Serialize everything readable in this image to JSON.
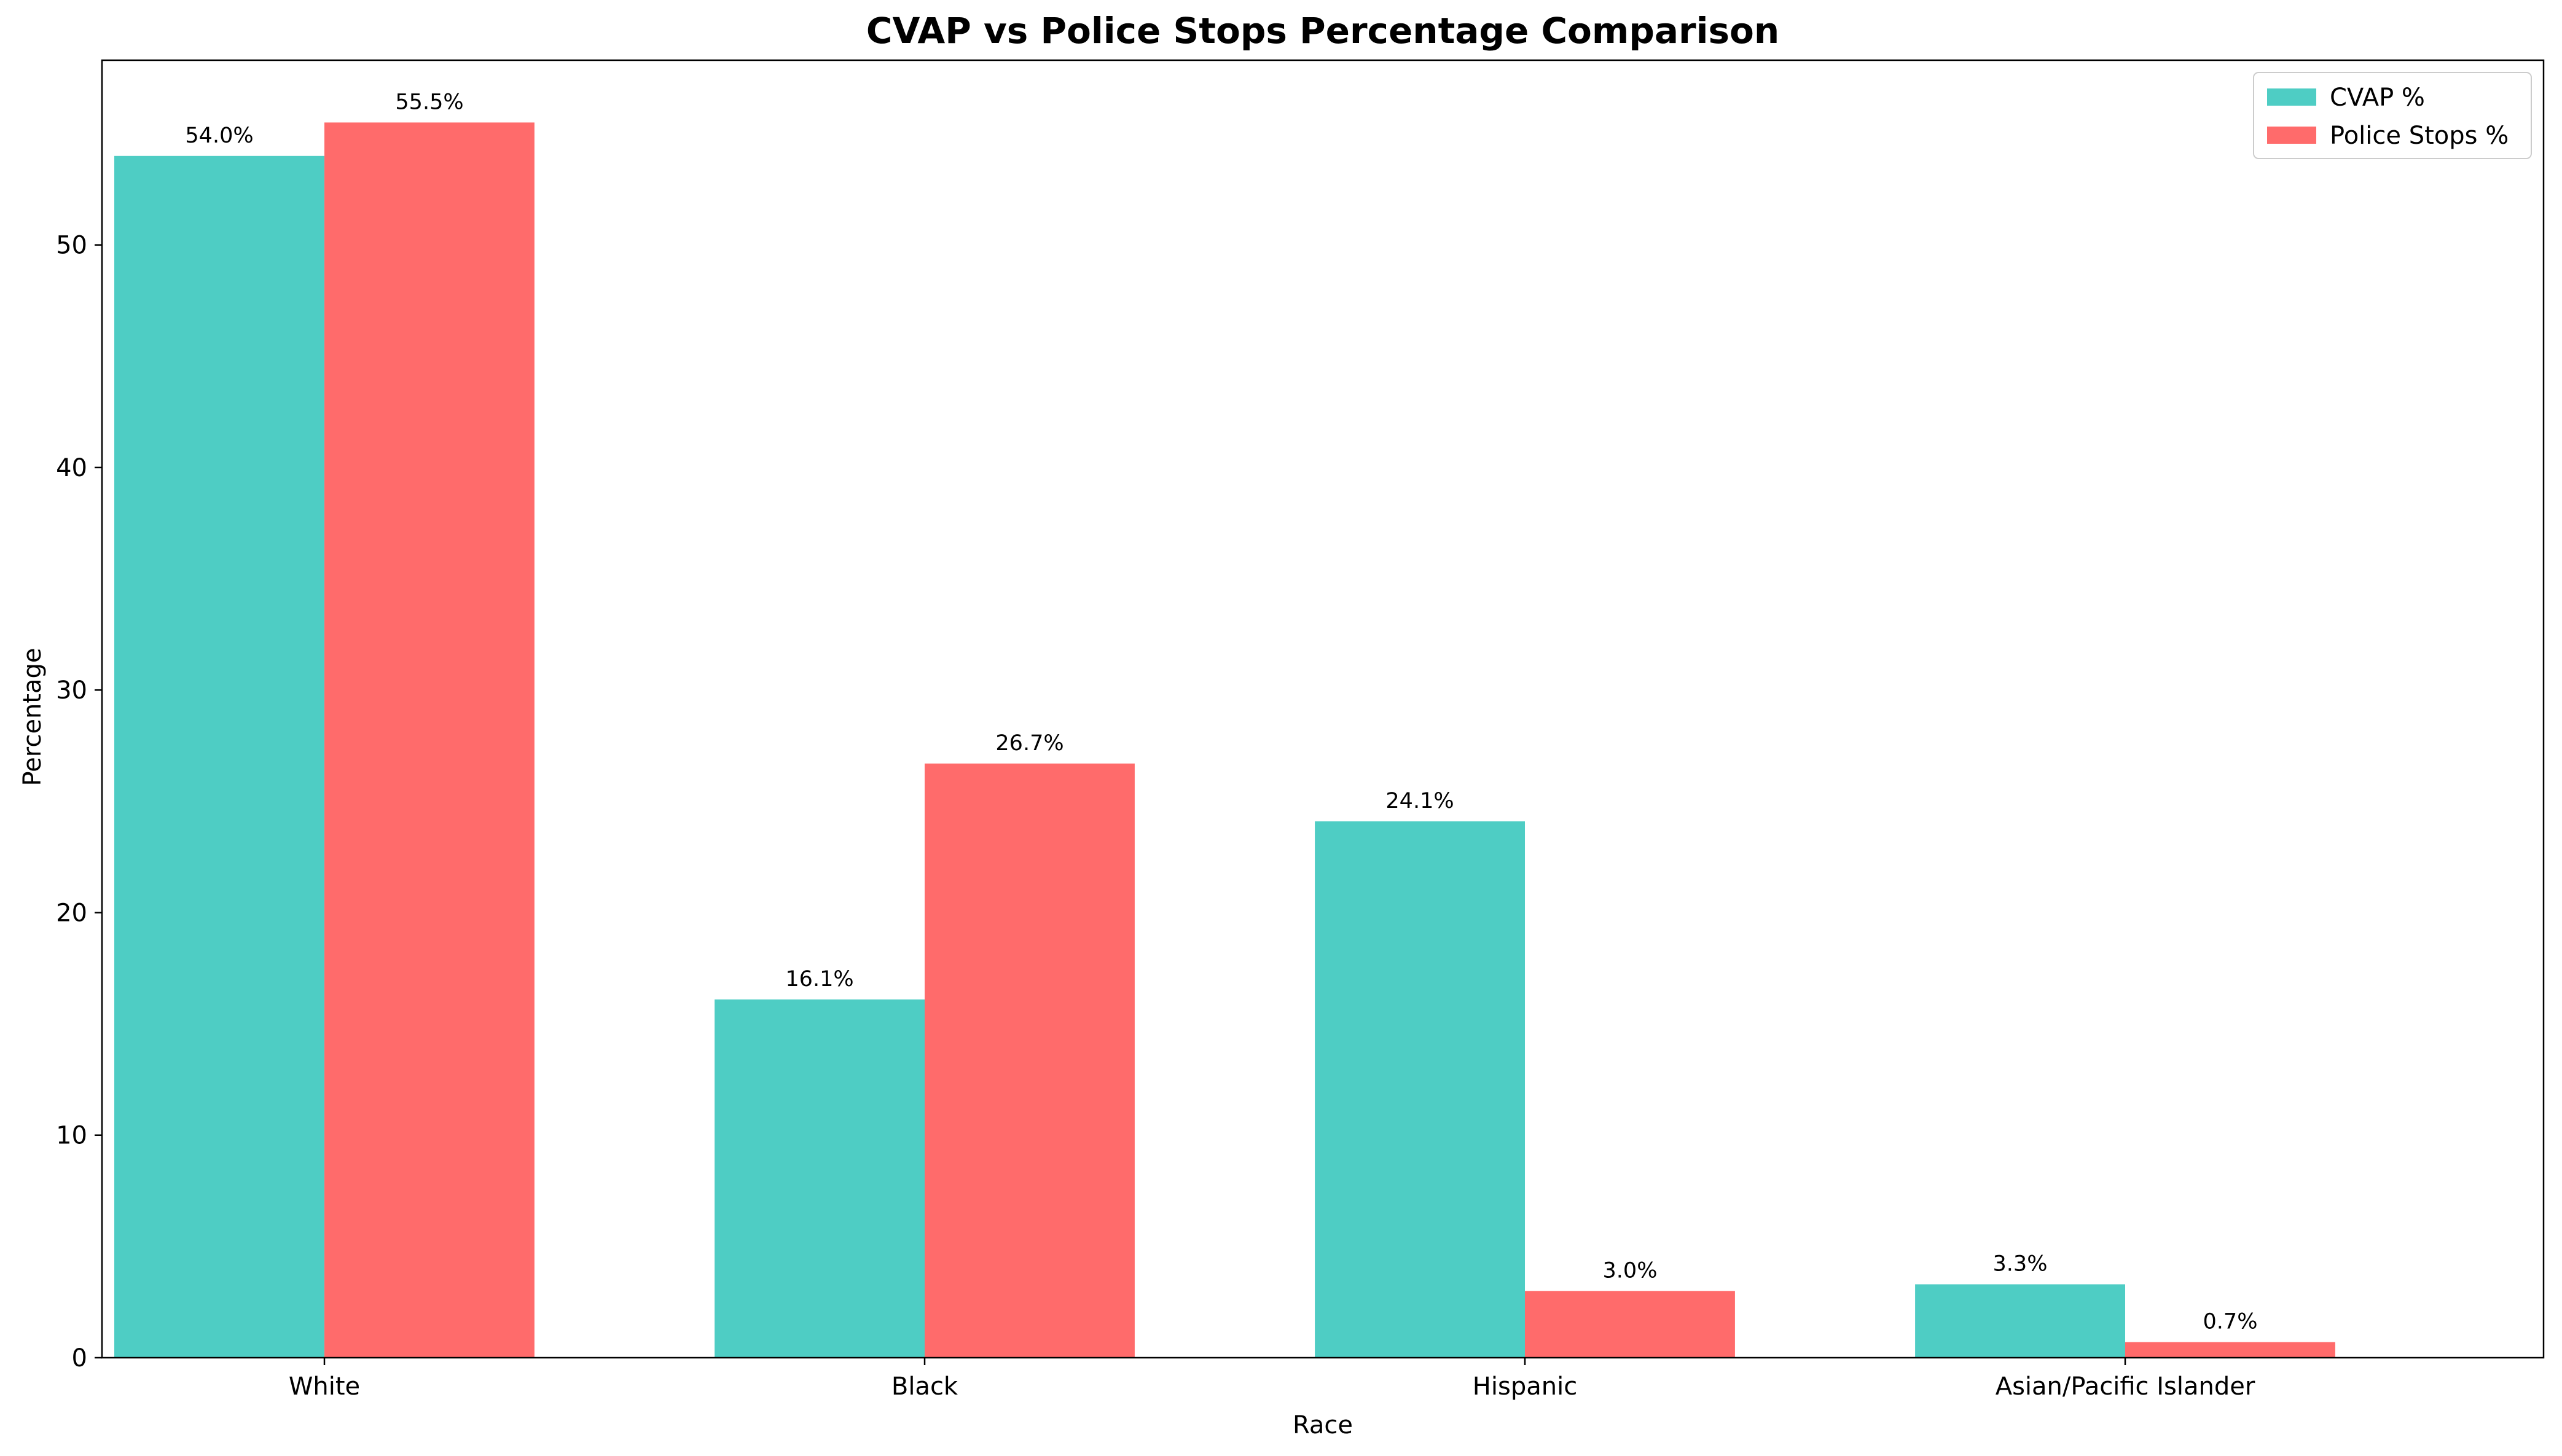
{
  "chart_data": {
    "type": "bar",
    "title": "CVAP vs Police Stops Percentage Comparison",
    "xlabel": "Race",
    "ylabel": "Percentage",
    "categories": [
      "White",
      "Black",
      "Hispanic",
      "Asian/Pacific Islander"
    ],
    "series": [
      {
        "name": "CVAP %",
        "color": "#4ECDC4",
        "values": [
          54.0,
          16.1,
          24.1,
          3.3
        ],
        "labels": [
          "54.0%",
          "16.1%",
          "24.1%",
          "3.3%"
        ]
      },
      {
        "name": "Police Stops %",
        "color": "#FF6B6B",
        "values": [
          55.5,
          26.7,
          3.0,
          0.7
        ],
        "labels": [
          "55.5%",
          "26.7%",
          "3.0%",
          "0.7%"
        ]
      }
    ],
    "ylim": [
      0,
      58.3
    ],
    "yticks": [
      0,
      10,
      20,
      30,
      40,
      50
    ],
    "grid": false,
    "legend_position": "top-right"
  }
}
